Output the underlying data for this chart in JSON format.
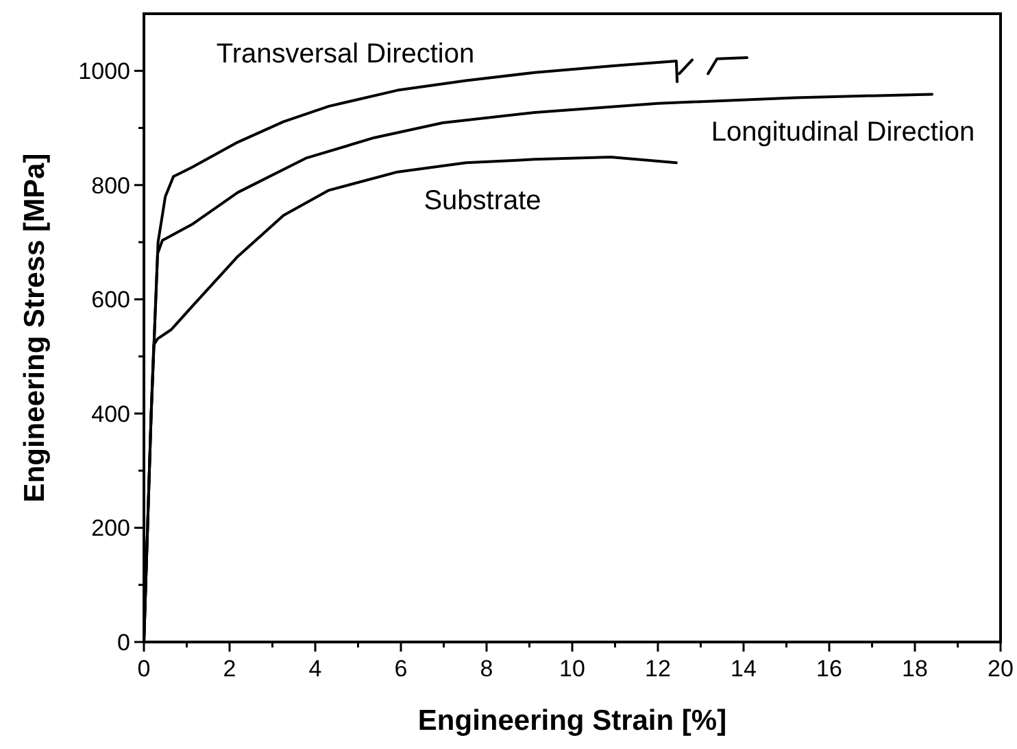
{
  "chart_data": {
    "type": "line",
    "xlabel": "Engineering Strain [%]",
    "ylabel": "Engineering Stress [MPa]",
    "xlim": [
      0,
      20
    ],
    "ylim": [
      0,
      1100
    ],
    "xticks": [
      0,
      {
        "value": 1,
        "label": null
      },
      2,
      {
        "value": 3,
        "label": null
      },
      4,
      {
        "value": 5,
        "label": null
      },
      6,
      {
        "value": 7,
        "label": null
      },
      8,
      {
        "value": 9,
        "label": null
      },
      10,
      {
        "value": 11,
        "label": null
      },
      12,
      {
        "value": 13,
        "label": null
      },
      14,
      {
        "value": 15,
        "label": null
      },
      16,
      {
        "value": 17,
        "label": null
      },
      18,
      {
        "value": 19,
        "label": null
      },
      20
    ],
    "yticks": [
      0,
      {
        "value": 100,
        "label": null
      },
      200,
      {
        "value": 300,
        "label": null
      },
      400,
      {
        "value": 500,
        "label": null
      },
      600,
      {
        "value": 700,
        "label": null
      },
      800,
      {
        "value": 900,
        "label": null
      },
      1000
    ],
    "grid": false,
    "marker": "none",
    "line_style": "solid",
    "series": [
      {
        "color": "#000000",
        "x": [
          0,
          0.17,
          0.33,
          0.5,
          0.69,
          1.12,
          2.19,
          3.26,
          4.32,
          5.92,
          7.52,
          9.12,
          11,
          12.43,
          12.45,
          null,
          12.5,
          12.8,
          null,
          13.17,
          13.38,
          14.08
        ],
        "values": [
          0,
          400,
          700,
          780,
          815,
          831,
          875,
          911,
          938,
          966,
          983,
          997,
          1009,
          1017,
          981,
          null,
          995,
          1019,
          null,
          995,
          1021,
          1023
        ]
      },
      {
        "color": "#000000",
        "x": [
          0,
          0.17,
          0.32,
          0.43,
          1.12,
          2.19,
          3.78,
          5.38,
          6.98,
          9.12,
          12,
          15.2,
          18.4
        ],
        "values": [
          0,
          400,
          680,
          703,
          731,
          787,
          847,
          883,
          909,
          927,
          943,
          953,
          959
        ]
      },
      {
        "color": "#000000",
        "x": [
          0,
          0.17,
          0.23,
          0.32,
          0.64,
          1.12,
          2.19,
          3.26,
          4.32,
          5.92,
          7.52,
          9.12,
          10.9,
          12.43
        ],
        "values": [
          0,
          400,
          520,
          531,
          547,
          587,
          675,
          747,
          791,
          823,
          839,
          845,
          849,
          839
        ]
      }
    ],
    "annotations": [
      "Transversal Direction",
      "Longitudinal Direction",
      "Substrate"
    ]
  }
}
